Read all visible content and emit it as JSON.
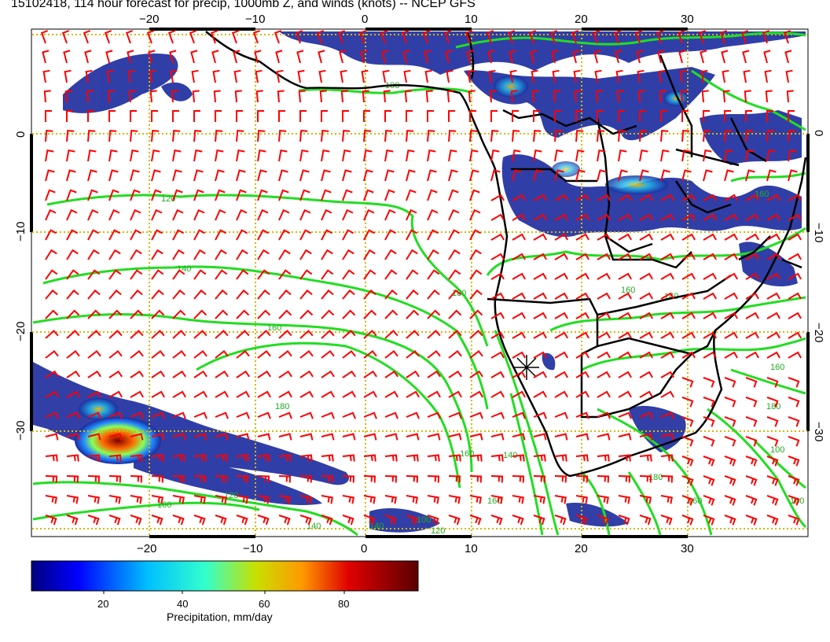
{
  "title": "15102418, 114 hour forecast for precip, 1000mb Z, and winds (knots) -- NCEP GFS",
  "map": {
    "lon_ticks": [
      "−20",
      "−10",
      "0",
      "10",
      "20",
      "30"
    ],
    "lat_ticks": [
      "0",
      "−10",
      "−20",
      "−30"
    ],
    "contour_labels": [
      "100",
      "120",
      "140",
      "160",
      "180",
      "160",
      "120",
      "140",
      "160",
      "180",
      "100",
      "120",
      "160",
      "140",
      "160",
      "140",
      "100",
      "160",
      "180",
      "180",
      "160",
      "180",
      "160",
      "140"
    ],
    "colors": {
      "wind_barbs": "#ff0000",
      "contours": "#22dd22",
      "coastlines": "#000000",
      "gridlines": "#d4b800",
      "precip_low": "#1a237e",
      "precip_mid": "#00bcd4",
      "precip_high": "#8b0000"
    }
  },
  "colorbar": {
    "title": "Precipitation, mm/day",
    "ticks": [
      "20",
      "40",
      "60",
      "80"
    ],
    "colors": [
      "#00007f",
      "#0000ff",
      "#007fff",
      "#00ffff",
      "#7fff7f",
      "#ffff00",
      "#ff7f00",
      "#ff0000",
      "#7f0000"
    ]
  }
}
